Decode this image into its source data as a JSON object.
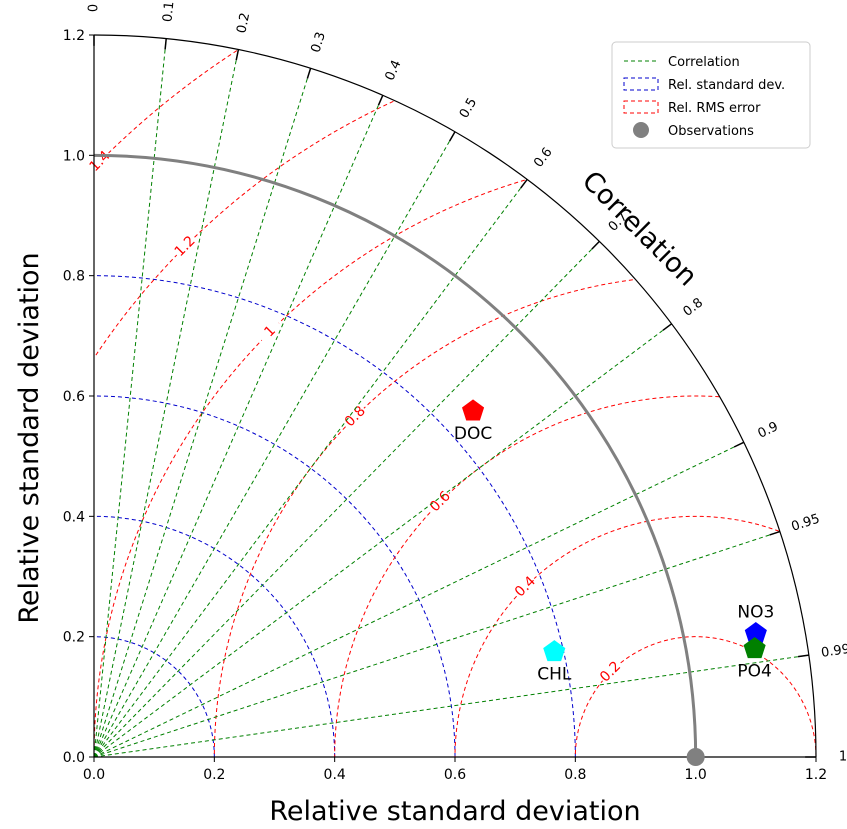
{
  "chart_data": {
    "type": "scatter",
    "diagram": "taylor",
    "title": "",
    "xlabel": "Relative standard deviation",
    "ylabel": "Relative standard deviation",
    "arc_label": "Correlation",
    "xlim": [
      0,
      1.2
    ],
    "ylim": [
      0,
      1.2
    ],
    "x_ticks": [
      "0.0",
      "0.2",
      "0.4",
      "0.6",
      "0.8",
      "1.0",
      "1.2"
    ],
    "y_ticks": [
      "0.0",
      "0.2",
      "0.4",
      "0.6",
      "0.8",
      "1.0",
      "1.2"
    ],
    "correlation_ticks": [
      {
        "value": 0,
        "label": "0"
      },
      {
        "value": 0.1,
        "label": "0.1"
      },
      {
        "value": 0.2,
        "label": "0.2"
      },
      {
        "value": 0.3,
        "label": "0.3"
      },
      {
        "value": 0.4,
        "label": "0.4"
      },
      {
        "value": 0.5,
        "label": "0.5"
      },
      {
        "value": 0.6,
        "label": "0.6"
      },
      {
        "value": 0.7,
        "label": "0.7"
      },
      {
        "value": 0.8,
        "label": "0.8"
      },
      {
        "value": 0.9,
        "label": "0.9"
      },
      {
        "value": 0.95,
        "label": "0.95"
      },
      {
        "value": 0.99,
        "label": "0.99"
      },
      {
        "value": 1,
        "label": "1"
      }
    ],
    "std_contours": [
      0.2,
      0.4,
      0.6,
      0.8
    ],
    "observation_std_arc": 1.0,
    "rms_contours": [
      {
        "value": 0.2,
        "label": "0.2"
      },
      {
        "value": 0.4,
        "label": "0.4"
      },
      {
        "value": 0.6,
        "label": "0.6"
      },
      {
        "value": 0.8,
        "label": "0.8"
      },
      {
        "value": 1.0,
        "label": "1"
      },
      {
        "value": 1.2,
        "label": "1.2"
      },
      {
        "value": 1.4,
        "label": "1.4"
      }
    ],
    "legend": {
      "position": "top-right",
      "entries": [
        {
          "label": "Correlation",
          "color": "#008000",
          "style": "dashed-line"
        },
        {
          "label": "Rel. standard dev.",
          "color": "#0000cc",
          "style": "dashed-box"
        },
        {
          "label": "Rel. RMS error",
          "color": "#ff0000",
          "style": "dashed-box"
        },
        {
          "label": "Observations",
          "color": "#808080",
          "style": "circle"
        }
      ]
    },
    "observation": {
      "name": "Observations",
      "x": 1.0,
      "y": 0.0,
      "color": "#808080"
    },
    "points": [
      {
        "name": "DOC",
        "x": 0.63,
        "y": 0.575,
        "color": "#ff0000",
        "label_pos": "below"
      },
      {
        "name": "CHL",
        "x": 0.765,
        "y": 0.175,
        "color": "#00ffff",
        "label_pos": "below"
      },
      {
        "name": "NO3",
        "x": 1.1,
        "y": 0.205,
        "color": "#0000ff",
        "label_pos": "above"
      },
      {
        "name": "PO4",
        "x": 1.098,
        "y": 0.18,
        "color": "#008000",
        "label_pos": "below"
      }
    ],
    "colors": {
      "correlation": "#008000",
      "std": "#0000cc",
      "rms": "#ff0000",
      "obs_arc": "#808080"
    }
  }
}
